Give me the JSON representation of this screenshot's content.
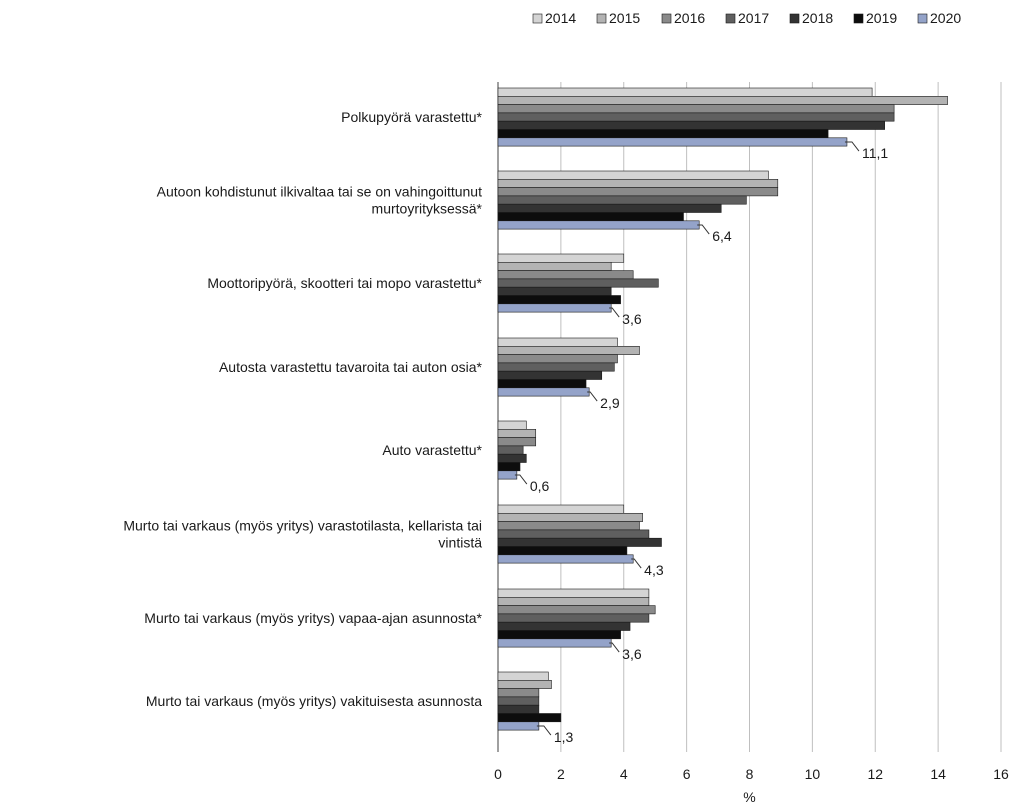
{
  "chart_data": {
    "type": "bar",
    "orientation": "horizontal",
    "categories": [
      [
        "Polkupyörä varastettu*"
      ],
      [
        "Autoon kohdistunut ilkivaltaa tai se on vahingoittunut",
        "murtoyrityksessä*"
      ],
      [
        "Moottoripyörä, skootteri tai mopo varastettu*"
      ],
      [
        "Autosta varastettu tavaroita tai auton osia*"
      ],
      [
        "Auto varastettu*"
      ],
      [
        "Murto tai varkaus (myös yritys) varastotilasta, kellarista tai",
        "vintistä"
      ],
      [
        "Murto tai varkaus (myös yritys) vapaa-ajan asunnosta*"
      ],
      [
        "Murto tai varkaus (myös yritys) vakituisesta asunnosta"
      ]
    ],
    "series": [
      {
        "name": "2014",
        "color": "#d4d4d4",
        "values": [
          11.9,
          8.6,
          4.0,
          3.8,
          0.9,
          4.0,
          4.8,
          1.6
        ]
      },
      {
        "name": "2015",
        "color": "#b3b3b3",
        "values": [
          14.3,
          8.9,
          3.6,
          4.5,
          1.2,
          4.6,
          4.8,
          1.7
        ]
      },
      {
        "name": "2016",
        "color": "#8a8a8a",
        "values": [
          12.6,
          8.9,
          4.3,
          3.8,
          1.2,
          4.5,
          5.0,
          1.3
        ]
      },
      {
        "name": "2017",
        "color": "#5f5f5f",
        "values": [
          12.6,
          7.9,
          5.1,
          3.7,
          0.8,
          4.8,
          4.8,
          1.3
        ]
      },
      {
        "name": "2018",
        "color": "#333333",
        "values": [
          12.3,
          7.1,
          3.6,
          3.3,
          0.9,
          5.2,
          4.2,
          1.3
        ]
      },
      {
        "name": "2019",
        "color": "#0d0d0d",
        "values": [
          10.5,
          5.9,
          3.9,
          2.8,
          0.7,
          4.1,
          3.9,
          2.0
        ]
      },
      {
        "name": "2020",
        "color": "#94a3c9",
        "values": [
          11.1,
          6.4,
          3.6,
          2.9,
          0.6,
          4.3,
          3.6,
          1.3
        ]
      }
    ],
    "data_labels": [
      "11,1",
      "6,4",
      "3,6",
      "2,9",
      "0,6",
      "4,3",
      "3,6",
      "1,3"
    ],
    "xlim": [
      0,
      16
    ],
    "xticks": [
      "0",
      "2",
      "4",
      "6",
      "8",
      "10",
      "12",
      "14",
      "16"
    ],
    "xlabel": "%",
    "grid": "vertical",
    "legend_position": "top-right"
  }
}
